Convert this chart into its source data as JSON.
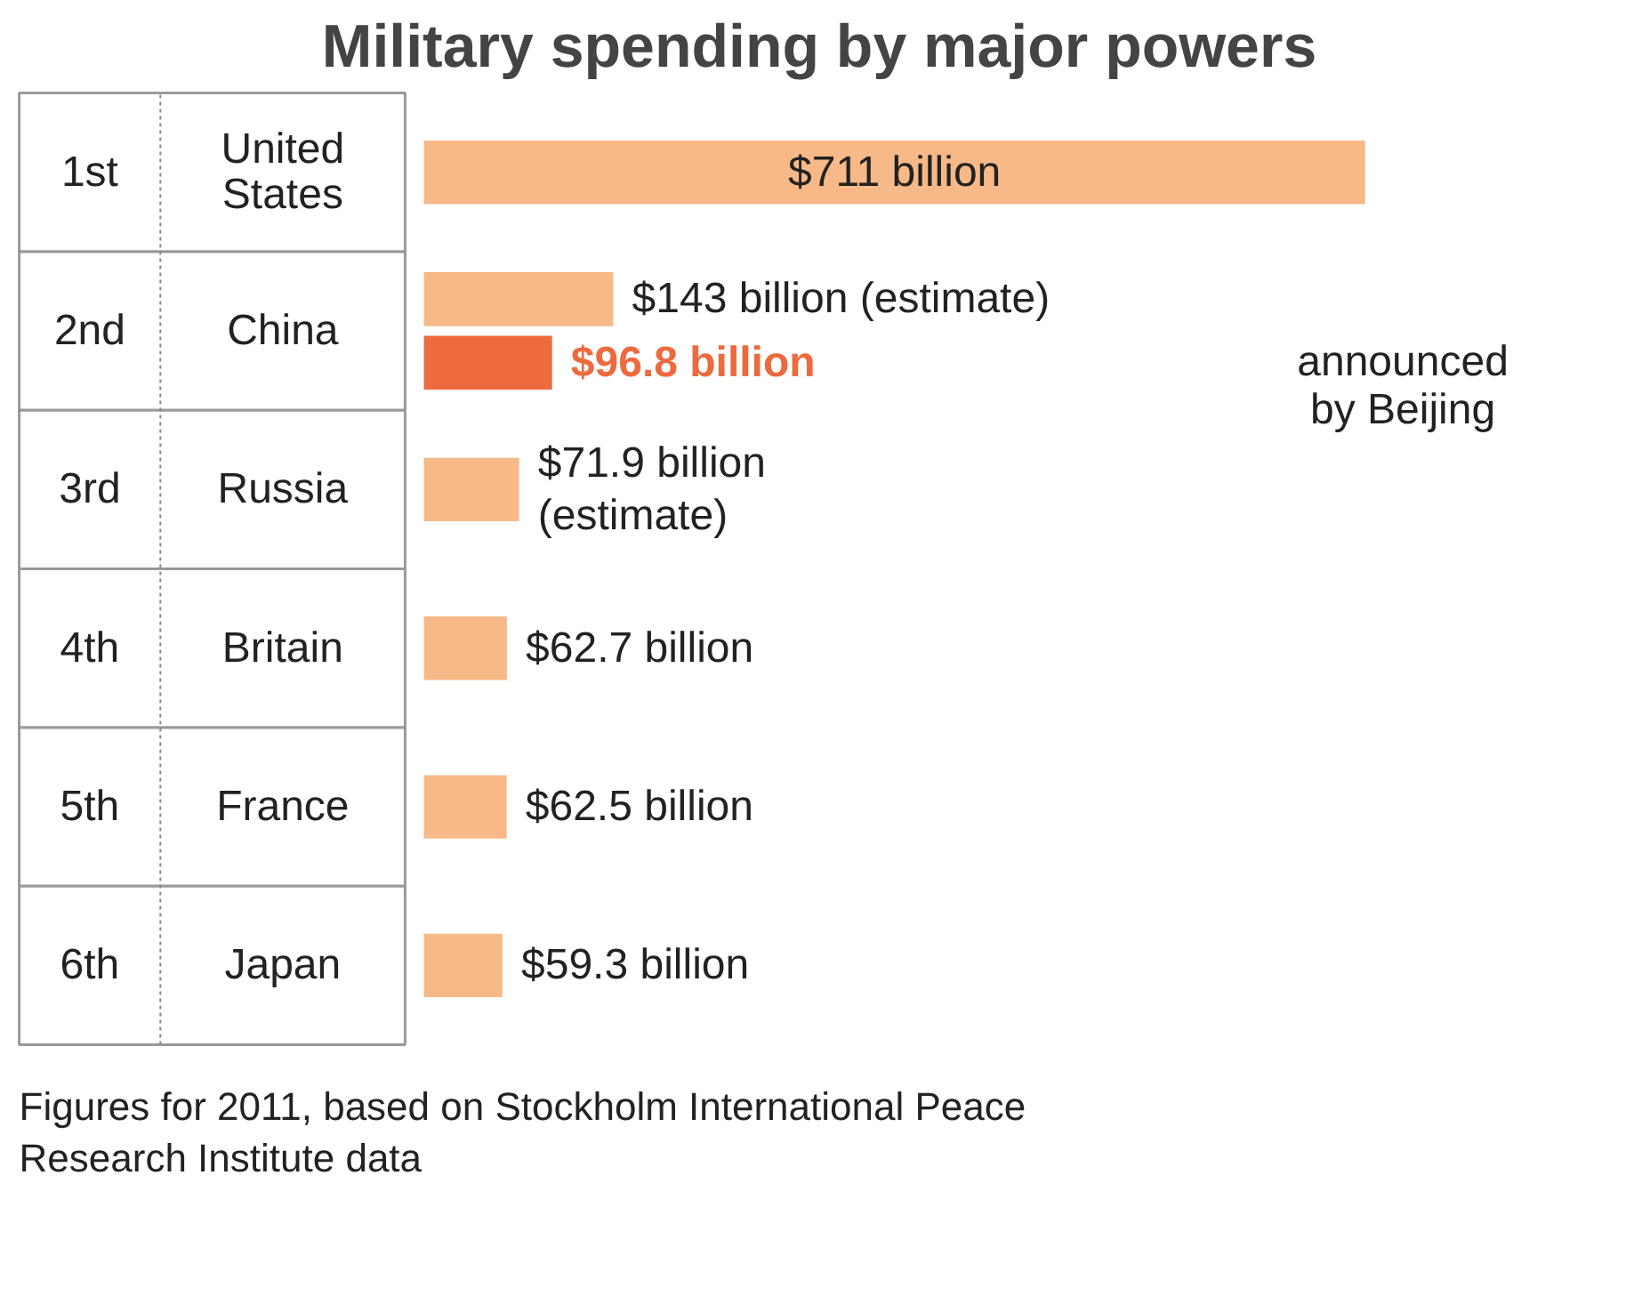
{
  "chart_data": {
    "type": "bar",
    "orientation": "horizontal",
    "title": "Military spending by major powers",
    "categories": [
      "United\nStates",
      "China",
      "Russia",
      "Britain",
      "France",
      "Japan"
    ],
    "series": [
      {
        "color": "#f6b987",
        "values": [
          711,
          143,
          71.9,
          62.7,
          62.5,
          59.3
        ],
        "value_labels": [
          "$711 billion",
          "$143 billion  (estimate)",
          "$71.9 billion\n(estimate)",
          "$62.7 billion",
          "$62.5 billion",
          "$59.3 billion"
        ]
      },
      {
        "name": "announced\nby Beijing",
        "color": "#ec6a3e",
        "values": [
          null,
          96.8,
          null,
          null,
          null,
          null
        ],
        "value_labels": [
          null,
          "$96.8 billion",
          null,
          null,
          null,
          null
        ]
      }
    ],
    "annotations": [
      "1st",
      "2nd",
      "3rd",
      "4th",
      "5th",
      "6th",
      "Figures for 2011, based on Stockholm International Peace\nResearch Institute data"
    ],
    "grid": false
  }
}
